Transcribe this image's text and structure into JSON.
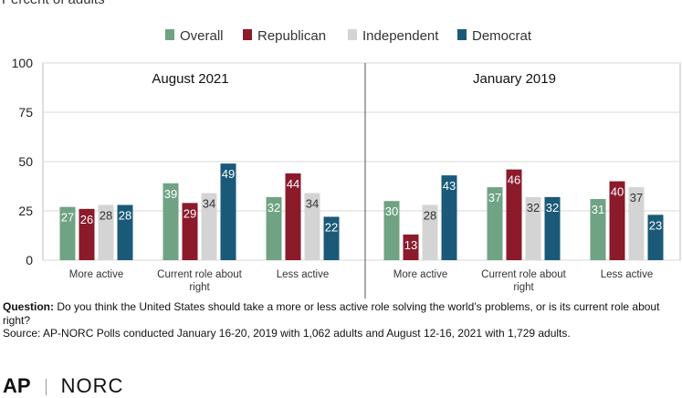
{
  "subtitle": "Percent of adults",
  "legend": [
    "Overall",
    "Republican",
    "Independent",
    "Democrat"
  ],
  "colors": {
    "Overall": "#6fa383",
    "Republican": "#8b1a2b",
    "Independent": "#d4d4d4",
    "Democrat": "#1a5a78"
  },
  "footnote": {
    "question_label": "Question:",
    "question_text": " Do you think the United States should take a more or less active role solving the world’s problems, or is its current role about right?",
    "source": "Source: AP-NORC Polls conducted January 16-20, 2019 with 1,062 adults and August 12-16, 2021 with 1,729 adults."
  },
  "logos": {
    "ap": "AP",
    "norc": "NORC"
  },
  "chart_data": {
    "type": "bar",
    "ylim": [
      0,
      100
    ],
    "yticks": [
      0,
      25,
      50,
      75,
      100
    ],
    "grid": true,
    "legend_position": "top",
    "panels": [
      {
        "title": "August 2021",
        "categories": [
          "More active",
          "Current role about right",
          "Less active"
        ],
        "series": [
          {
            "name": "Overall",
            "values": [
              27,
              39,
              32
            ]
          },
          {
            "name": "Republican",
            "values": [
              26,
              29,
              44
            ]
          },
          {
            "name": "Independent",
            "values": [
              28,
              34,
              34
            ]
          },
          {
            "name": "Democrat",
            "values": [
              28,
              49,
              22
            ]
          }
        ]
      },
      {
        "title": "January 2019",
        "categories": [
          "More active",
          "Current role about right",
          "Less active"
        ],
        "series": [
          {
            "name": "Overall",
            "values": [
              30,
              37,
              31
            ]
          },
          {
            "name": "Republican",
            "values": [
              13,
              46,
              40
            ]
          },
          {
            "name": "Independent",
            "values": [
              28,
              32,
              37
            ]
          },
          {
            "name": "Democrat",
            "values": [
              43,
              32,
              23
            ]
          }
        ]
      }
    ]
  }
}
